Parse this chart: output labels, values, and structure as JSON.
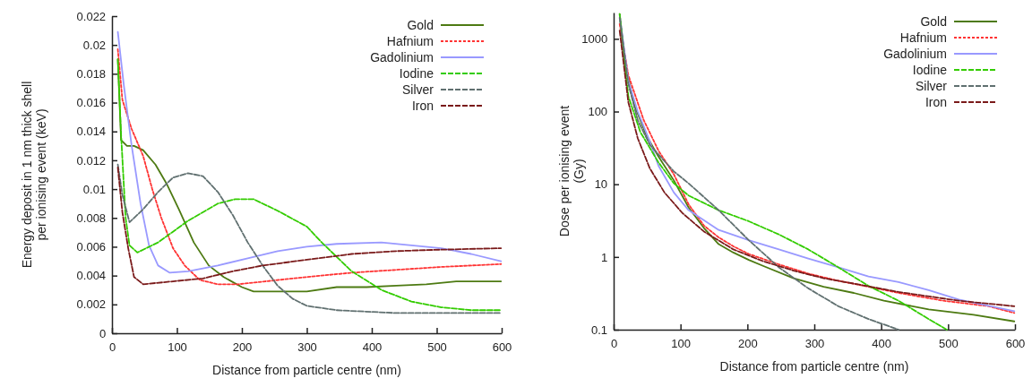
{
  "chart_data": [
    {
      "type": "line",
      "xlabel": "Distance from particle centre (nm)",
      "ylabel": "Energy deposit in 1 nm thick shell\nper ionising event (keV)",
      "xlim": [
        0,
        600
      ],
      "xticks": [
        0,
        100,
        200,
        300,
        400,
        500,
        600
      ],
      "ylim": [
        0,
        0.022
      ],
      "yticks": [
        0,
        0.002,
        0.004,
        0.006,
        0.008,
        0.01,
        0.012,
        0.014,
        0.016,
        0.018,
        0.02,
        0.022
      ],
      "grid": false,
      "legend": "top right",
      "series": [
        {
          "name": "Gold",
          "color": "#4d7a12",
          "line_style": "solid",
          "x": [
            9,
            14,
            23,
            34,
            48,
            67,
            85,
            103,
            126,
            149,
            172,
            200,
            218,
            255,
            300,
            346,
            392,
            438,
            484,
            530,
            599
          ],
          "values": [
            0.019,
            0.0134,
            0.013,
            0.013,
            0.0127,
            0.0117,
            0.0103,
            0.0086,
            0.0063,
            0.0047,
            0.0039,
            0.0032,
            0.0029,
            0.0029,
            0.0029,
            0.0032,
            0.0032,
            0.0033,
            0.0034,
            0.0036,
            0.0036
          ]
        },
        {
          "name": "Hafnium",
          "color": "#ff3333",
          "line_style": "dotted",
          "x": [
            9,
            16,
            30,
            48,
            62,
            76,
            94,
            112,
            135,
            163,
            195,
            236,
            300,
            369,
            438,
            507,
            599
          ],
          "values": [
            0.0197,
            0.0162,
            0.0142,
            0.0123,
            0.01,
            0.008,
            0.0059,
            0.0047,
            0.0037,
            0.0034,
            0.0034,
            0.0036,
            0.0039,
            0.0042,
            0.0044,
            0.0046,
            0.0048
          ]
        },
        {
          "name": "Gadolinium",
          "color": "#9999ff",
          "line_style": "solid",
          "x": [
            9,
            18,
            30,
            44,
            57,
            71,
            89,
            117,
            163,
            209,
            255,
            300,
            346,
            415,
            461,
            507,
            553,
            599
          ],
          "values": [
            0.0209,
            0.0173,
            0.0131,
            0.009,
            0.0061,
            0.0047,
            0.0042,
            0.0043,
            0.0047,
            0.0052,
            0.0057,
            0.006,
            0.0062,
            0.0063,
            0.0061,
            0.0059,
            0.0055,
            0.005
          ]
        },
        {
          "name": "Iodine",
          "color": "#33cc00",
          "line_style": "dashed",
          "x": [
            9,
            14,
            21,
            27,
            39,
            71,
            117,
            163,
            190,
            218,
            255,
            300,
            323,
            369,
            415,
            461,
            507,
            553,
            599
          ],
          "values": [
            0.019,
            0.0138,
            0.008,
            0.0061,
            0.0056,
            0.0063,
            0.0078,
            0.009,
            0.0093,
            0.0093,
            0.0085,
            0.0074,
            0.0063,
            0.0043,
            0.003,
            0.0022,
            0.0018,
            0.0016,
            0.0016
          ]
        },
        {
          "name": "Silver",
          "color": "#607070",
          "line_style": "dashed",
          "x": [
            9,
            16,
            27,
            48,
            71,
            94,
            117,
            140,
            163,
            186,
            209,
            232,
            255,
            278,
            300,
            346,
            438,
            599
          ],
          "values": [
            0.0117,
            0.0096,
            0.0077,
            0.0086,
            0.0098,
            0.0108,
            0.0111,
            0.0109,
            0.0098,
            0.0082,
            0.0063,
            0.0047,
            0.0033,
            0.0024,
            0.0019,
            0.0016,
            0.0014,
            0.0014
          ]
        },
        {
          "name": "Iron",
          "color": "#7a1a1a",
          "line_style": "dashed",
          "x": [
            9,
            16,
            25,
            34,
            48,
            94,
            140,
            186,
            232,
            300,
            369,
            438,
            507,
            599
          ],
          "values": [
            0.0115,
            0.0084,
            0.0059,
            0.0039,
            0.0034,
            0.0036,
            0.0038,
            0.0043,
            0.0047,
            0.0051,
            0.0055,
            0.0057,
            0.0058,
            0.0059
          ]
        }
      ]
    },
    {
      "type": "line",
      "xlabel": "Distance from particle centre (nm)",
      "ylabel": "Dose per ionising event\n(Gy)",
      "log": "y",
      "xlim": [
        0,
        600
      ],
      "xticks": [
        0,
        100,
        200,
        300,
        400,
        500,
        600
      ],
      "ylim": [
        0.1,
        2300
      ],
      "yticks": [
        0.1,
        1,
        10,
        100,
        1000
      ],
      "grid": false,
      "legend": "top right",
      "series": [
        {
          "name": "Gold",
          "color": "#4d7a12",
          "line_style": "solid",
          "x": [
            9,
            18,
            31,
            49,
            67,
            90,
            112,
            135,
            157,
            179,
            202,
            224,
            269,
            314,
            359,
            404,
            471,
            538,
            599
          ],
          "values": [
            2200,
            420,
            122,
            47,
            24,
            11.3,
            4.8,
            2.5,
            1.5,
            1.15,
            0.91,
            0.75,
            0.51,
            0.39,
            0.32,
            0.25,
            0.19,
            0.16,
            0.13
          ]
        },
        {
          "name": "Hafnium",
          "color": "#ff3333",
          "line_style": "dotted",
          "x": [
            9,
            22,
            45,
            67,
            90,
            112,
            135,
            157,
            179,
            202,
            247,
            291,
            336,
            381,
            426,
            493,
            561,
            599
          ],
          "values": [
            1600,
            316,
            76,
            29,
            13.7,
            5.3,
            2.7,
            1.86,
            1.4,
            1.1,
            0.79,
            0.59,
            0.47,
            0.39,
            0.32,
            0.25,
            0.21,
            0.17
          ]
        },
        {
          "name": "Gadolinium",
          "color": "#9999ff",
          "line_style": "solid",
          "x": [
            9,
            22,
            36,
            54,
            67,
            90,
            112,
            157,
            202,
            247,
            291,
            336,
            381,
            426,
            471,
            516,
            599
          ],
          "values": [
            2100,
            262,
            100,
            39,
            18,
            7.7,
            4.4,
            2.35,
            1.7,
            1.27,
            0.95,
            0.72,
            0.54,
            0.45,
            0.35,
            0.26,
            0.18
          ]
        },
        {
          "name": "Iodine",
          "color": "#33cc00",
          "line_style": "dashed",
          "x": [
            9,
            22,
            40,
            67,
            90,
            112,
            157,
            202,
            247,
            291,
            336,
            381,
            426,
            471,
            498
          ],
          "values": [
            2200,
            162,
            52,
            20,
            10.3,
            7,
            4.4,
            3.1,
            2.04,
            1.27,
            0.72,
            0.4,
            0.25,
            0.14,
            0.1
          ]
        },
        {
          "name": "Silver",
          "color": "#607070",
          "line_style": "dashed",
          "x": [
            9,
            22,
            36,
            54,
            90,
            112,
            157,
            202,
            247,
            291,
            336,
            381,
            426
          ],
          "values": [
            1950,
            240,
            76,
            35,
            15,
            10.3,
            4.4,
            1.7,
            0.72,
            0.37,
            0.21,
            0.14,
            0.1
          ]
        },
        {
          "name": "Iron",
          "color": "#7a1a1a",
          "line_style": "dashed",
          "x": [
            9,
            22,
            36,
            54,
            76,
            103,
            135,
            179,
            224,
            269,
            314,
            359,
            426,
            516,
            599
          ],
          "values": [
            1300,
            134,
            43,
            16.6,
            7.7,
            4,
            2.24,
            1.27,
            0.87,
            0.65,
            0.51,
            0.43,
            0.33,
            0.25,
            0.21
          ]
        }
      ]
    }
  ]
}
